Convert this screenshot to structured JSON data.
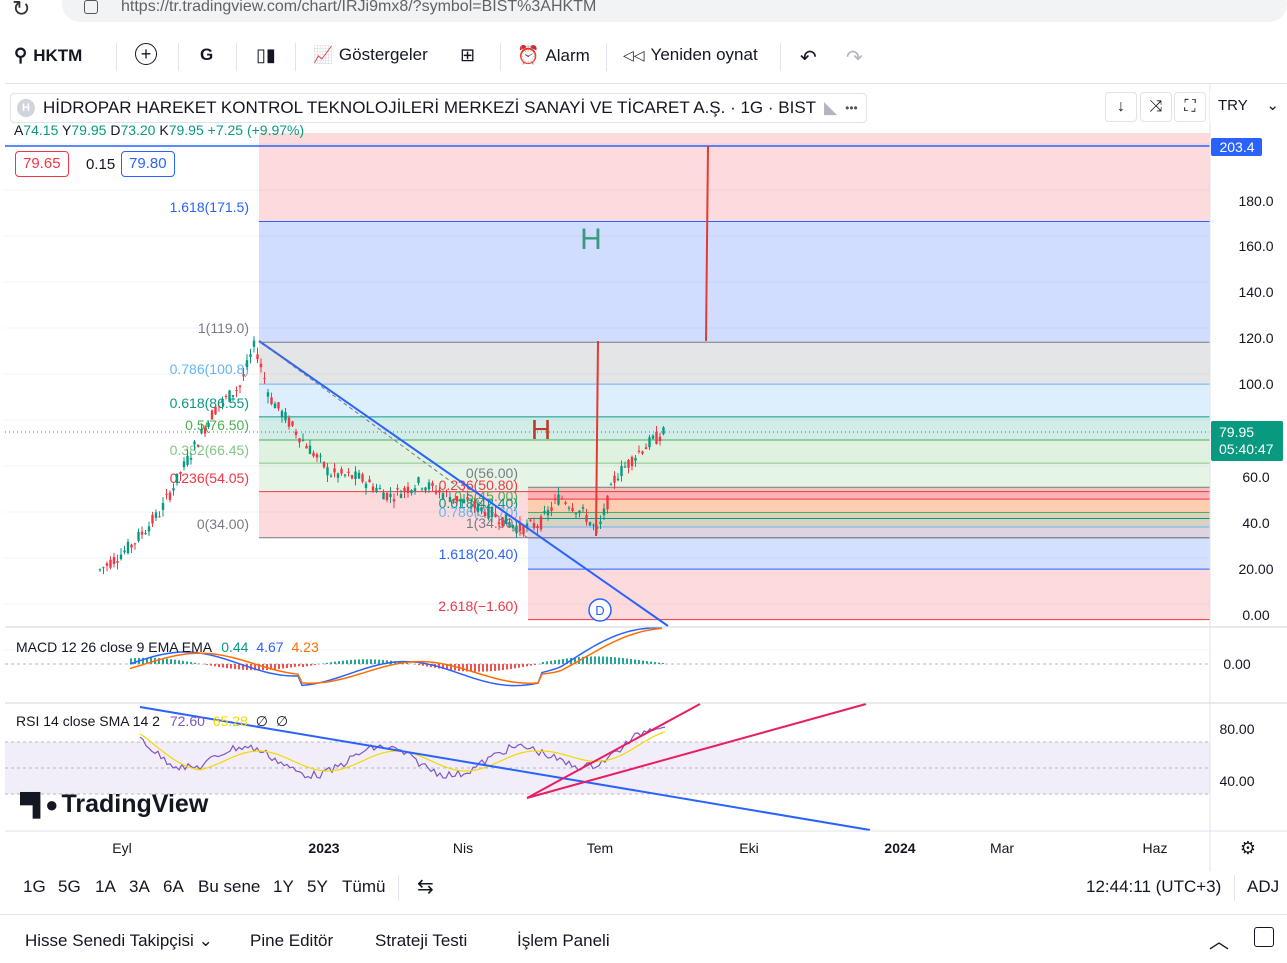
{
  "browser": {
    "url": "https://tr.tradingview.com/chart/IRJi9mx8/?symbol=BIST%3AHKTM"
  },
  "toolbar": {
    "symbol": "HKTM",
    "interval": "G",
    "indicators": "Göstergeler",
    "alarm": "Alarm",
    "replay": "Yeniden oynat"
  },
  "legend": {
    "title": "HİDROPAR HAREKET KONTROL TEKNOLOJİLERİ MERKEZİ SANAYİ VE TİCARET A.Ş. · 1G · BIST",
    "more": "•••"
  },
  "ohlc": {
    "open_label": "A",
    "open": "74.15",
    "high_label": "Y",
    "high": "79.95",
    "low_label": "D",
    "low": "73.20",
    "close_label": "K",
    "close": "79.95",
    "change": "+7.25 (+9.97%)"
  },
  "quote": {
    "bid": "79.65",
    "spread": "0.15",
    "ask": "79.80"
  },
  "currency": "TRY",
  "price_axis": {
    "ticks": [
      "180.0",
      "160.0",
      "140.0",
      "120.0",
      "100.0",
      "80.0",
      "60.0",
      "40.0",
      "20.00",
      "0.00"
    ],
    "top_label": "203.4",
    "last_price": "79.95",
    "countdown": "05:40:47"
  },
  "fib_left": [
    {
      "label": "1.618(171.5)",
      "color": "#2962ff"
    },
    {
      "label": "1(119.0)",
      "color": "#787b86"
    },
    {
      "label": "0.786(100.8)",
      "color": "#64b5f6"
    },
    {
      "label": "0.618(86.55)",
      "color": "#089981"
    },
    {
      "label": "0.5(76.50)",
      "color": "#4caf50"
    },
    {
      "label": "0.382(66.45)",
      "color": "#81c784"
    },
    {
      "label": "0.236(54.05)",
      "color": "#f23645"
    },
    {
      "label": "0(34.00)",
      "color": "#787b86"
    }
  ],
  "fib_right": [
    {
      "label": "0(56.00)",
      "color": "#787b86"
    },
    {
      "label": "0.236(50.80)",
      "color": "#f23645"
    },
    {
      "label": "0.5(45.00)",
      "color": "#4caf50"
    },
    {
      "label": "0.618(42.40)",
      "color": "#089981"
    },
    {
      "label": "0.786(38.70)",
      "color": "#64b5f6"
    },
    {
      "label": "1(34.00)",
      "color": "#787b86"
    },
    {
      "label": "1.618(20.40)",
      "color": "#2962ff"
    },
    {
      "label": "2.618(−1.60)",
      "color": "#f23645"
    }
  ],
  "markers": {
    "h_green": "H",
    "h_red": "H",
    "d": "D"
  },
  "macd": {
    "title": "MACD 12 26 close 9 EMA EMA",
    "v1": "0.44",
    "v2": "4.67",
    "v3": "4.23",
    "axis": "0.00"
  },
  "rsi": {
    "title": "RSI 14 close SMA 14 2",
    "v1": "72.60",
    "v2": "65.28",
    "v3": "∅",
    "v4": "∅",
    "axis_top": "80.00",
    "axis_bottom": "40.00"
  },
  "time_axis": [
    "Eyl",
    "2023",
    "Nis",
    "Tem",
    "Eki",
    "2024",
    "Mar",
    "Haz"
  ],
  "ranges": [
    "1G",
    "5G",
    "1A",
    "3A",
    "6A",
    "Bu sene",
    "1Y",
    "5Y",
    "Tümü"
  ],
  "clock": "12:44:11 (UTC+3)",
  "adj": "ADJ",
  "bottom_tabs": [
    "Hisse Senedi Takipçisi",
    "Pine Editör",
    "Strateji Testi",
    "İşlem Paneli"
  ],
  "watermark": "TradingView",
  "colors": {
    "accent": "#2962ff",
    "up": "#089981",
    "down": "#f23645",
    "last_price": "#089981"
  }
}
